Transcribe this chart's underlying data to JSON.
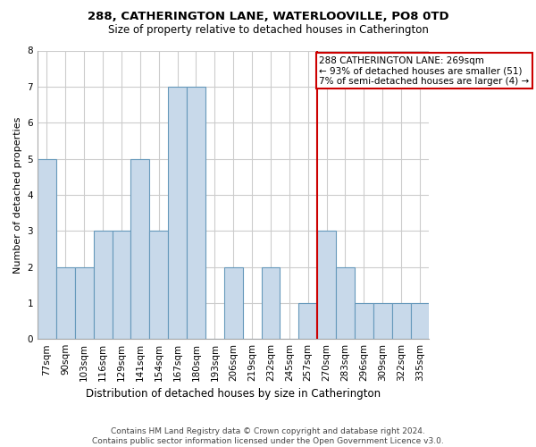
{
  "title": "288, CATHERINGTON LANE, WATERLOOVILLE, PO8 0TD",
  "subtitle": "Size of property relative to detached houses in Catherington",
  "xlabel": "Distribution of detached houses by size in Catherington",
  "ylabel": "Number of detached properties",
  "bin_labels": [
    "77sqm",
    "90sqm",
    "103sqm",
    "116sqm",
    "129sqm",
    "141sqm",
    "154sqm",
    "167sqm",
    "180sqm",
    "193sqm",
    "206sqm",
    "219sqm",
    "232sqm",
    "245sqm",
    "257sqm",
    "270sqm",
    "283sqm",
    "296sqm",
    "309sqm",
    "322sqm",
    "335sqm"
  ],
  "bar_heights": [
    5,
    2,
    2,
    3,
    3,
    5,
    3,
    7,
    7,
    0,
    2,
    0,
    2,
    0,
    1,
    3,
    2,
    1,
    1,
    1,
    1
  ],
  "bar_color": "#c8d9ea",
  "bar_edge_color": "#6699bb",
  "ref_line_color": "#cc0000",
  "ref_bar_index": 15,
  "annotation_text": "288 CATHERINGTON LANE: 269sqm\n← 93% of detached houses are smaller (51)\n7% of semi-detached houses are larger (4) →",
  "annotation_box_color": "#ffffff",
  "annotation_box_edge_color": "#cc0000",
  "ylim": [
    0,
    8
  ],
  "yticks": [
    0,
    1,
    2,
    3,
    4,
    5,
    6,
    7,
    8
  ],
  "footnote": "Contains HM Land Registry data © Crown copyright and database right 2024.\nContains public sector information licensed under the Open Government Licence v3.0.",
  "bg_color": "#ffffff",
  "grid_color": "#cccccc",
  "title_fontsize": 9.5,
  "subtitle_fontsize": 8.5,
  "xlabel_fontsize": 8.5,
  "ylabel_fontsize": 8,
  "tick_fontsize": 7.5,
  "annot_fontsize": 7.5,
  "footnote_fontsize": 6.5
}
